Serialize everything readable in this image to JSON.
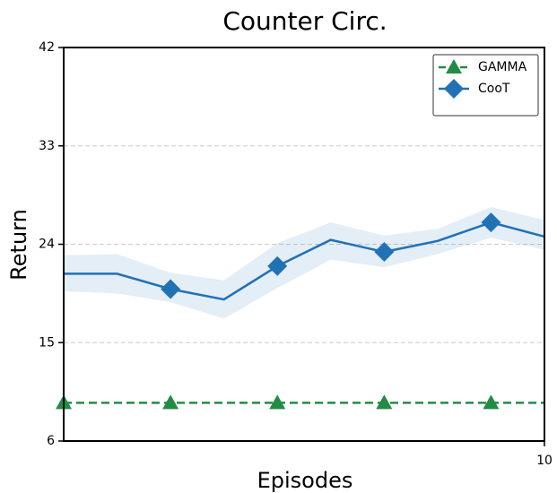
{
  "chart_data": {
    "type": "line",
    "title": "Counter Circ.",
    "x_label": "Episodes",
    "y_label": "Return",
    "x": [
      1,
      2,
      3,
      4,
      5,
      6,
      7,
      8,
      9,
      10
    ],
    "series": [
      {
        "name": "GAMMA",
        "color": "#238b45",
        "linestyle": "dashed",
        "marker": "triangle",
        "marker_x": [
          1,
          3,
          5,
          7,
          9
        ],
        "values": [
          9.5,
          9.5,
          9.5,
          9.5,
          9.5,
          9.5,
          9.5,
          9.5,
          9.5,
          9.5
        ]
      },
      {
        "name": "CooT",
        "color": "#2171b5",
        "linestyle": "solid",
        "marker": "diamond",
        "marker_x": [
          3,
          5,
          7,
          9
        ],
        "values": [
          21.3,
          21.3,
          19.9,
          18.95,
          22.0,
          24.4,
          23.3,
          24.3,
          26.0,
          24.7
        ],
        "lower": [
          19.7,
          19.5,
          18.7,
          17.2,
          20.0,
          22.6,
          21.9,
          23.1,
          24.6,
          23.5
        ],
        "upper": [
          23.0,
          23.1,
          21.4,
          20.7,
          24.1,
          26.0,
          24.8,
          25.4,
          27.4,
          26.2
        ]
      }
    ],
    "xlim": [
      1,
      10
    ],
    "xticks": [
      10
    ],
    "ylim": [
      6,
      42
    ],
    "yticks": [
      6,
      15,
      24,
      33,
      42
    ],
    "grid": true,
    "legend": "upper right"
  }
}
